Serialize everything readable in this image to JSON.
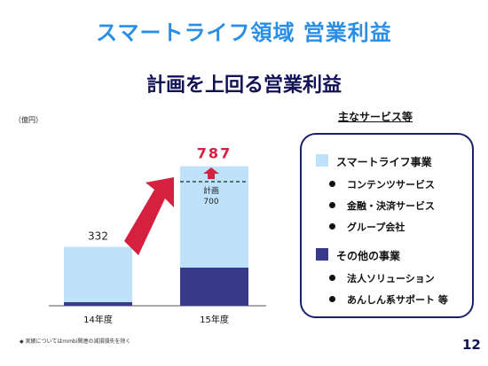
{
  "title": "スマートライフ領域 営業利益",
  "subtitle": "計画を上回る営業利益",
  "unit": "（億円）",
  "legend": {
    "title": "主なサービス等",
    "categories": [
      {
        "name": "スマートライフ事業",
        "color": "#bfe2fb",
        "items": [
          "コンテンツサービス",
          "金融・決済サービス",
          "グループ会社"
        ]
      },
      {
        "name": "その他の事業",
        "color": "#3a3a8c",
        "items": [
          "法人ソリューション",
          "あんしん系サポート 等"
        ]
      }
    ]
  },
  "note": "実績についてはmmbi関連の減損損失を除く",
  "page_number": "12",
  "chart_data": {
    "type": "bar",
    "stacked": true,
    "categories": [
      "14年度",
      "15年度"
    ],
    "series": [
      {
        "values": [
          20,
          215
        ],
        "color": "#3a3a8c"
      },
      {
        "values": [
          312,
          572
        ],
        "color": "#bfe2fb"
      }
    ],
    "totals": [
      332,
      787
    ],
    "total_labels": [
      "332",
      "787"
    ],
    "plan": {
      "label": "計画",
      "value": 700,
      "value_label": "700"
    },
    "ylim": [
      0,
      800
    ],
    "colors": {
      "total_highlight": "#d62040",
      "arrow": "#d62040"
    }
  }
}
